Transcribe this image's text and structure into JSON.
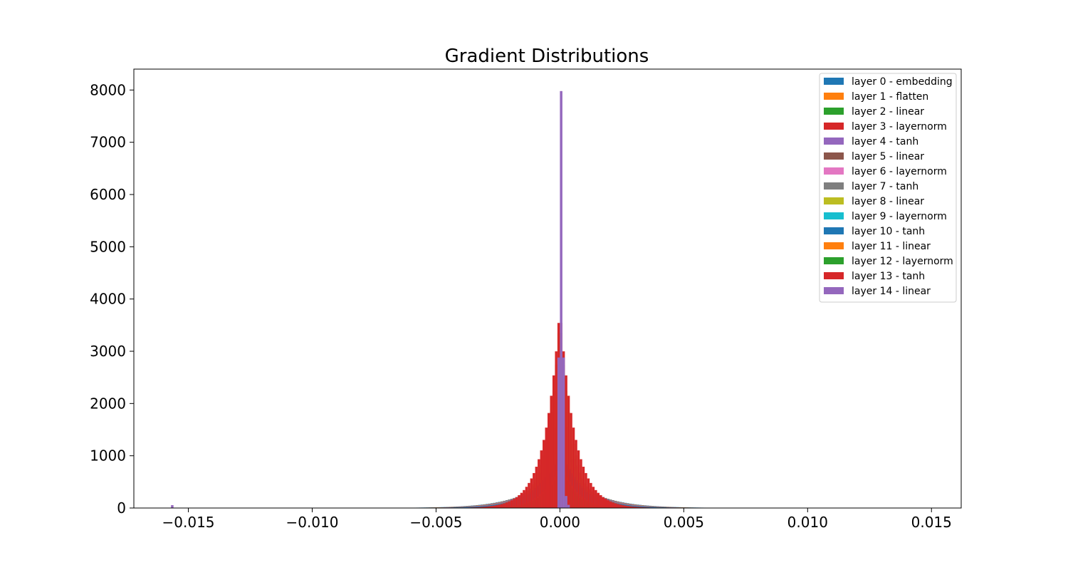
{
  "chart_data": {
    "type": "histogram",
    "title": "Gradient Distributions",
    "xlabel": "",
    "ylabel": "",
    "xlim": [
      -0.0172,
      0.0162
    ],
    "ylim": [
      0,
      8400
    ],
    "x_ticks": [
      -0.015,
      -0.01,
      -0.005,
      0.0,
      0.005,
      0.01,
      0.015
    ],
    "x_tick_labels": [
      "−0.015",
      "−0.010",
      "−0.005",
      "0.000",
      "0.005",
      "0.010",
      "0.015"
    ],
    "y_ticks": [
      0,
      1000,
      2000,
      3000,
      4000,
      5000,
      6000,
      7000,
      8000
    ],
    "y_tick_labels": [
      "0",
      "1000",
      "2000",
      "3000",
      "4000",
      "5000",
      "6000",
      "7000",
      "8000"
    ],
    "grid": false,
    "legend_position": "top-right",
    "series": [
      {
        "name": "layer 0 - embedding",
        "color": "#1f77b4",
        "shape": "laplace",
        "scale": 0.0012,
        "peak": 900
      },
      {
        "name": "layer 1 - flatten",
        "color": "#ff7f0e",
        "shape": "laplace",
        "scale": 0.0011,
        "peak": 1000
      },
      {
        "name": "layer 2 - linear",
        "color": "#2ca02c",
        "shape": "laplace",
        "scale": 0.001,
        "peak": 1050
      },
      {
        "name": "layer 3 - layernorm",
        "color": "#d62728",
        "shape": "laplace",
        "scale": 0.0009,
        "peak": 1100
      },
      {
        "name": "layer 4 - tanh",
        "color": "#9467bd",
        "shape": "laplace",
        "scale": 0.001,
        "peak": 1150
      },
      {
        "name": "layer 5 - linear",
        "color": "#8c564b",
        "shape": "laplace",
        "scale": 0.0006,
        "peak": 2350
      },
      {
        "name": "layer 6 - layernorm",
        "color": "#e377c2",
        "shape": "laplace",
        "scale": 0.0009,
        "peak": 1300
      },
      {
        "name": "layer 7 - tanh",
        "color": "#7f7f7f",
        "shape": "laplace",
        "scale": 0.0009,
        "peak": 1350
      },
      {
        "name": "layer 8 - linear",
        "color": "#bcbd22",
        "shape": "laplace",
        "scale": 0.0005,
        "peak": 3700
      },
      {
        "name": "layer 9 - layernorm",
        "color": "#17becf",
        "shape": "laplace",
        "scale": 0.0008,
        "peak": 1100
      },
      {
        "name": "layer 10 - tanh",
        "color": "#1f77b4",
        "shape": "laplace",
        "scale": 0.0009,
        "peak": 1100
      },
      {
        "name": "layer 11 - linear",
        "color": "#ff7f0e",
        "shape": "laplace",
        "scale": 0.0006,
        "peak": 900
      },
      {
        "name": "layer 12 - layernorm",
        "color": "#2ca02c",
        "shape": "laplace",
        "scale": 0.0006,
        "peak": 800
      },
      {
        "name": "layer 13 - tanh",
        "color": "#d62728",
        "shape": "laplace",
        "scale": 0.0006,
        "peak": 3850
      },
      {
        "name": "layer 14 - linear",
        "color": "#9467bd",
        "shape": "spike",
        "peak": 7980
      }
    ]
  }
}
